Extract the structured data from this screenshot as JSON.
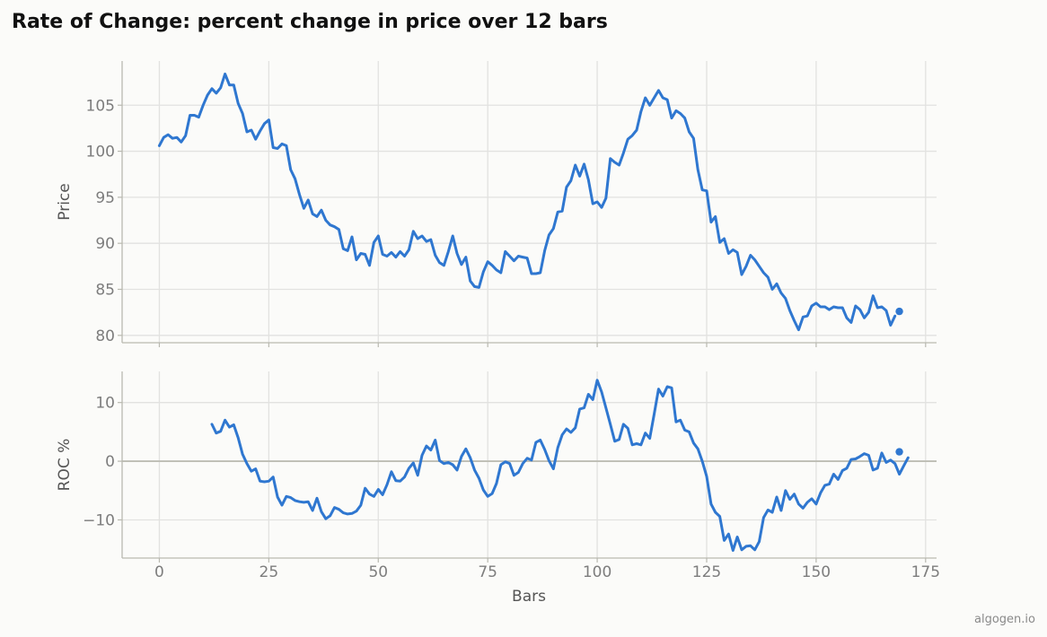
{
  "chart_data": {
    "title": "Rate of Change: percent change in price over 12 bars",
    "credit": "algogen.io",
    "xlabel": "Bars",
    "xlim": [
      -8.5,
      177.5
    ],
    "xticks": [
      0,
      25,
      50,
      75,
      100,
      125,
      150,
      175
    ],
    "line_color": "#2f77d0",
    "panels": [
      {
        "type": "line",
        "ylabel": "Price",
        "ylim": [
          79.2,
          109.8
        ],
        "yticks": [
          80,
          85,
          90,
          95,
          100,
          105
        ],
        "x_start": 0,
        "values": [
          100.6,
          101.5,
          101.8,
          101.4,
          101.5,
          101.0,
          101.7,
          103.9,
          103.9,
          103.7,
          105.0,
          106.1,
          106.8,
          106.3,
          106.9,
          108.4,
          107.2,
          107.2,
          105.2,
          104.1,
          102.1,
          102.3,
          101.3,
          102.2,
          103.0,
          103.4,
          100.4,
          100.3,
          100.8,
          100.6,
          98.0,
          97.0,
          95.3,
          93.8,
          94.7,
          93.2,
          92.9,
          93.6,
          92.5,
          92.0,
          91.8,
          91.5,
          89.4,
          89.2,
          90.7,
          88.2,
          88.9,
          88.8,
          87.6,
          90.1,
          90.8,
          88.8,
          88.6,
          89.0,
          88.5,
          89.1,
          88.6,
          89.3,
          91.3,
          90.5,
          90.8,
          90.2,
          90.4,
          88.7,
          87.9,
          87.6,
          89.1,
          90.8,
          88.9,
          87.7,
          88.5,
          85.9,
          85.3,
          85.2,
          86.9,
          88.0,
          87.6,
          87.1,
          86.8,
          89.1,
          88.6,
          88.1,
          88.6,
          88.5,
          88.4,
          86.7,
          86.7,
          86.8,
          89.2,
          90.9,
          91.6,
          93.4,
          93.5,
          96.1,
          96.8,
          98.5,
          97.3,
          98.6,
          96.9,
          94.3,
          94.5,
          93.9,
          94.9,
          99.2,
          98.8,
          98.5,
          99.8,
          101.3,
          101.7,
          102.3,
          104.3,
          105.8,
          105.0,
          105.8,
          106.6,
          105.8,
          105.6,
          103.6,
          104.4,
          104.1,
          103.6,
          102.1,
          101.4,
          98.0,
          95.8,
          95.7,
          92.3,
          92.9,
          90.1,
          90.5,
          88.9,
          89.3,
          89.0,
          86.6,
          87.5,
          88.7,
          88.2,
          87.5,
          86.8,
          86.3,
          85.0,
          85.6,
          84.6,
          84.0,
          82.7,
          81.6,
          80.6,
          82.0,
          82.1,
          83.2,
          83.5,
          83.1,
          83.1,
          82.8,
          83.1,
          83.0,
          83.0,
          81.9,
          81.4,
          83.2,
          82.8,
          81.9,
          82.5,
          84.3,
          83.0,
          83.1,
          82.7,
          81.1,
          82.1
        ],
        "last_point": [
          169,
          82.6
        ]
      },
      {
        "type": "line",
        "ylabel": "ROC %",
        "ylim": [
          -16.5,
          15.3
        ],
        "yticks": [
          -10,
          0,
          10
        ],
        "zero_line": true,
        "x_start": 12,
        "values": [
          6.3,
          4.8,
          5.1,
          7.0,
          5.8,
          6.2,
          4.0,
          1.2,
          -0.4,
          -1.7,
          -1.3,
          -3.4,
          -3.5,
          -3.4,
          -2.7,
          -6.1,
          -7.5,
          -6.0,
          -6.2,
          -6.7,
          -6.9,
          -7.0,
          -6.9,
          -8.4,
          -6.3,
          -8.6,
          -9.8,
          -9.3,
          -7.9,
          -8.2,
          -8.8,
          -9.0,
          -8.9,
          -8.5,
          -7.5,
          -4.6,
          -5.6,
          -6.0,
          -4.8,
          -5.7,
          -4.0,
          -1.8,
          -3.3,
          -3.4,
          -2.7,
          -1.2,
          -0.3,
          -2.4,
          1.0,
          2.6,
          1.9,
          3.6,
          0.1,
          -0.4,
          -0.2,
          -0.6,
          -1.5,
          0.8,
          2.1,
          0.6,
          -1.5,
          -2.9,
          -4.9,
          -6.0,
          -5.5,
          -3.8,
          -0.6,
          -0.1,
          -0.4,
          -2.4,
          -1.9,
          -0.4,
          0.5,
          0.2,
          3.2,
          3.6,
          2.0,
          0.1,
          -1.3,
          2.3,
          4.5,
          5.5,
          4.9,
          5.7,
          8.9,
          9.1,
          11.4,
          10.5,
          13.8,
          11.8,
          9.1,
          6.3,
          3.4,
          3.7,
          6.3,
          5.6,
          2.8,
          3.0,
          2.8,
          4.8,
          3.9,
          8.0,
          12.3,
          11.1,
          12.7,
          12.5,
          6.7,
          7.0,
          5.3,
          5.0,
          3.1,
          2.1,
          0.0,
          -2.6,
          -7.3,
          -8.7,
          -9.4,
          -13.5,
          -12.4,
          -15.2,
          -12.9,
          -15.1,
          -14.5,
          -14.4,
          -15.1,
          -13.7,
          -9.6,
          -8.3,
          -8.7,
          -6.1,
          -8.4,
          -5.0,
          -6.5,
          -5.6,
          -7.3,
          -8.0,
          -7.0,
          -6.4,
          -7.3,
          -5.4,
          -4.1,
          -3.9,
          -2.2,
          -3.1,
          -1.6,
          -1.2,
          0.3,
          0.4,
          0.8,
          1.3,
          1.0,
          -1.5,
          -1.2,
          1.4,
          -0.2,
          0.2,
          -0.4,
          -2.2,
          -0.8,
          0.6
        ],
        "last_point": [
          169,
          1.6
        ]
      }
    ]
  }
}
